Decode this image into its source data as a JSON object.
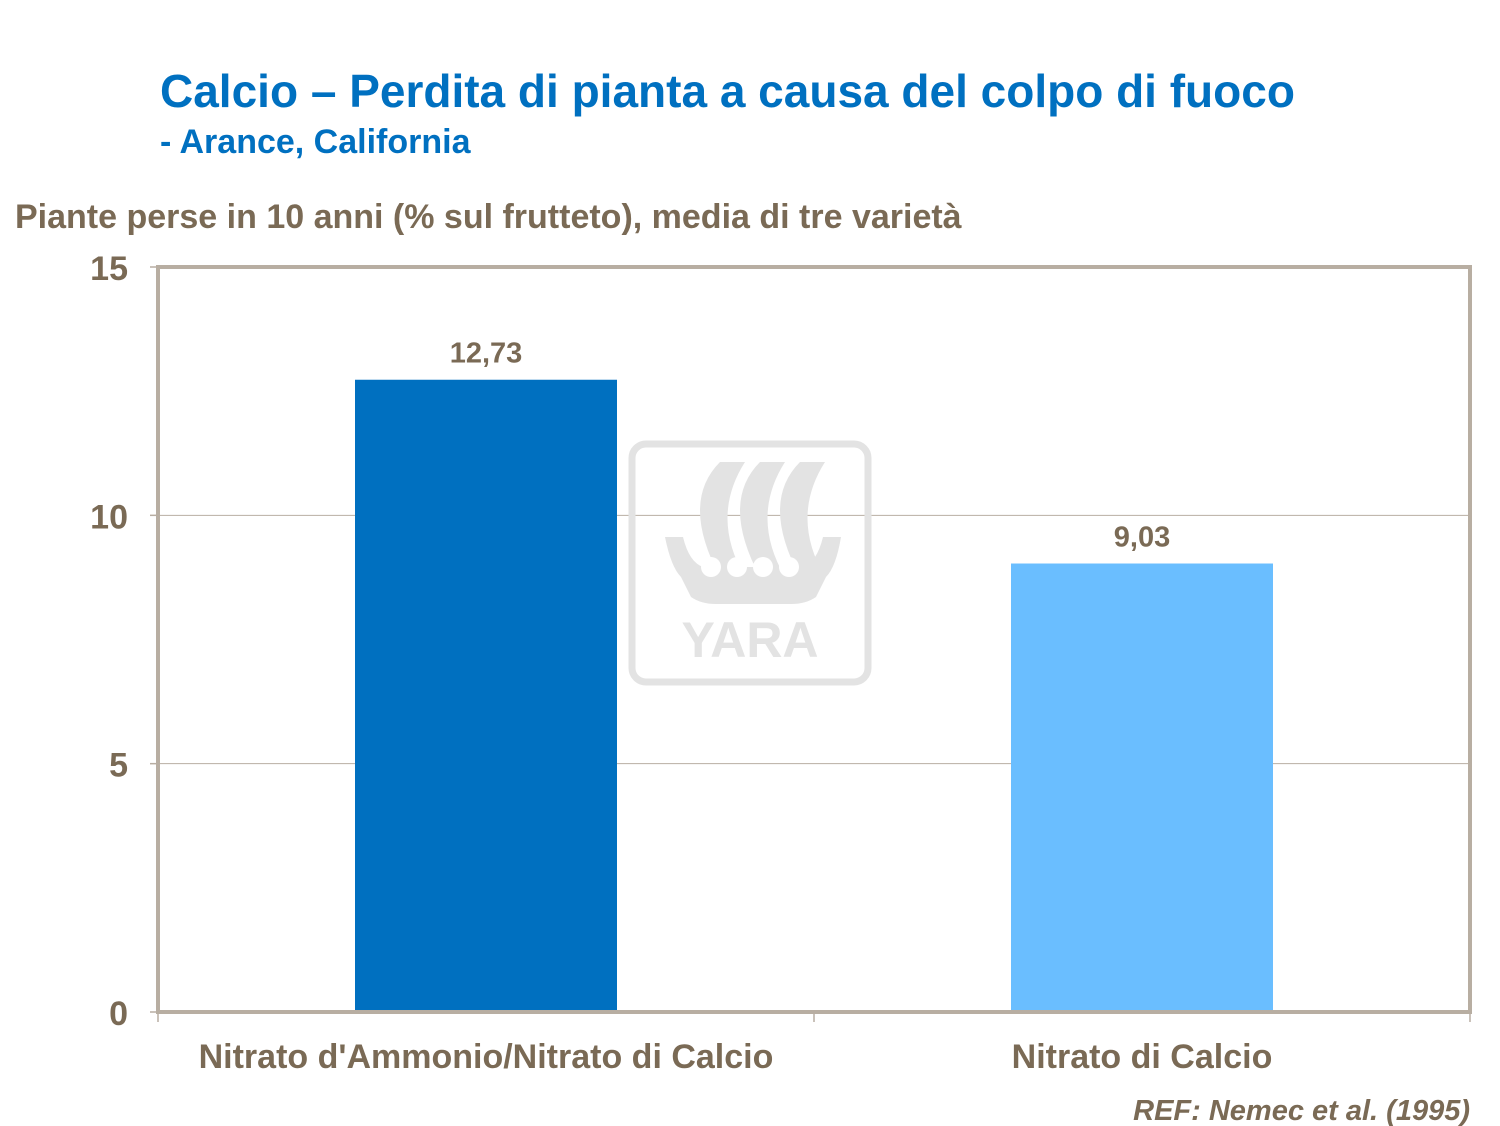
{
  "header": {
    "title": "Calcio – Perdita di pianta a causa del colpo di fuoco",
    "subtitle": "- Arance, California"
  },
  "watermark": {
    "logo_text": "YARA",
    "color": "#e3e3e3"
  },
  "reference": "REF: Nemec et al. (1995)",
  "colors": {
    "title": "#0070c0",
    "text": "#7a6a55",
    "frame": "#b8aea2",
    "grid": "#b8aea2"
  },
  "chart_data": {
    "type": "bar",
    "title": "",
    "ylabel": "Piante perse in 10 anni (% sul frutteto), media di tre varietà",
    "xlabel": "",
    "categories": [
      "Nitrato d'Ammonio/Nitrato di Calcio",
      "Nitrato di Calcio"
    ],
    "values": [
      12.73,
      9.03
    ],
    "data_labels": [
      "12,73",
      "9,03"
    ],
    "bar_colors": [
      "#0070c0",
      "#6abeff"
    ],
    "ylim": [
      0,
      15
    ],
    "yticks": [
      0,
      5,
      10,
      15
    ],
    "ytick_labels": [
      "0",
      "5",
      "10",
      "15"
    ],
    "grid": true,
    "legend": "none"
  }
}
